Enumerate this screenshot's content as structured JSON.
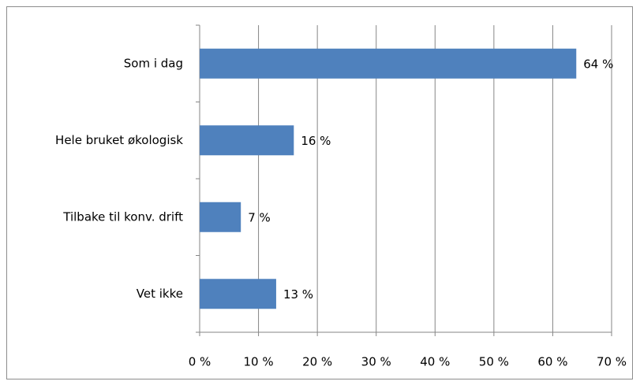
{
  "chart_data": {
    "type": "bar",
    "orientation": "horizontal",
    "categories": [
      "Som i dag",
      "Hele bruket økologisk",
      "Tilbake til konv. drift",
      "Vet ikke"
    ],
    "values": [
      64,
      16,
      7,
      13
    ],
    "value_labels": [
      "64 %",
      "16 %",
      "7 %",
      "13 %"
    ],
    "color": "#4f81bd",
    "xlim": [
      0,
      70
    ],
    "xticks": [
      {
        "value": 0,
        "label": "0 %"
      },
      {
        "value": 10,
        "label": "10 %"
      },
      {
        "value": 20,
        "label": "20 %"
      },
      {
        "value": 30,
        "label": "30 %"
      },
      {
        "value": 40,
        "label": "40 %"
      },
      {
        "value": 50,
        "label": "50 %"
      },
      {
        "value": 60,
        "label": "60 %"
      },
      {
        "value": 70,
        "label": "70 %"
      }
    ],
    "grid": true
  }
}
